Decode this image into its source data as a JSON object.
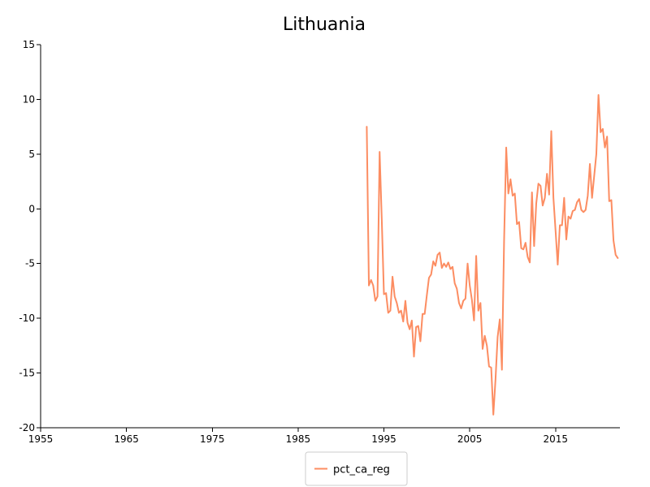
{
  "chart_data": {
    "type": "line",
    "title": "Lithuania",
    "xlabel": "",
    "ylabel": "",
    "xlim": [
      1955,
      2022.5
    ],
    "ylim": [
      -20,
      15
    ],
    "x_ticks": [
      "1955",
      "1965",
      "1975",
      "1985",
      "1995",
      "2005",
      "2015"
    ],
    "y_ticks": [
      "15",
      "10",
      "5",
      "0",
      "-5",
      "-10",
      "-15",
      "-20"
    ],
    "grid": false,
    "legend_position": "bottom-center",
    "series": [
      {
        "name": "pct_ca_reg",
        "color": "#fc8d62",
        "x": [
          1993.0,
          1993.25,
          1993.5,
          1993.75,
          1994.0,
          1994.25,
          1994.5,
          1994.75,
          1995.0,
          1995.25,
          1995.5,
          1995.75,
          1996.0,
          1996.25,
          1996.5,
          1996.75,
          1997.0,
          1997.25,
          1997.5,
          1997.75,
          1998.0,
          1998.25,
          1998.5,
          1998.75,
          1999.0,
          1999.25,
          1999.5,
          1999.75,
          2000.0,
          2000.25,
          2000.5,
          2000.75,
          2001.0,
          2001.25,
          2001.5,
          2001.75,
          2002.0,
          2002.25,
          2002.5,
          2002.75,
          2003.0,
          2003.25,
          2003.5,
          2003.75,
          2004.0,
          2004.25,
          2004.5,
          2004.75,
          2005.0,
          2005.25,
          2005.5,
          2005.75,
          2006.0,
          2006.25,
          2006.5,
          2006.75,
          2007.0,
          2007.25,
          2007.5,
          2007.75,
          2008.0,
          2008.25,
          2008.5,
          2008.75,
          2009.0,
          2009.25,
          2009.5,
          2009.75,
          2010.0,
          2010.25,
          2010.5,
          2010.75,
          2011.0,
          2011.25,
          2011.5,
          2011.75,
          2012.0,
          2012.25,
          2012.5,
          2012.75,
          2013.0,
          2013.25,
          2013.5,
          2013.75,
          2014.0,
          2014.25,
          2014.5,
          2014.75,
          2015.0,
          2015.25,
          2015.5,
          2015.75,
          2016.0,
          2016.25,
          2016.5,
          2016.75,
          2017.0,
          2017.25,
          2017.5,
          2017.75,
          2018.0,
          2018.25,
          2018.5,
          2018.75,
          2019.0,
          2019.25,
          2019.5,
          2019.75,
          2020.0,
          2020.25,
          2020.5,
          2020.75,
          2021.0,
          2021.25,
          2021.5,
          2021.75,
          2022.0,
          2022.25
        ],
        "y": [
          7.5,
          -7.0,
          -6.5,
          -7.0,
          -8.4,
          -8.0,
          5.2,
          -1.0,
          -7.8,
          -7.7,
          -9.5,
          -9.3,
          -6.2,
          -8.0,
          -8.6,
          -9.5,
          -9.3,
          -10.3,
          -8.4,
          -10.4,
          -11.0,
          -10.2,
          -13.5,
          -10.8,
          -10.7,
          -12.1,
          -9.6,
          -9.6,
          -7.9,
          -6.3,
          -6.0,
          -4.8,
          -5.2,
          -4.2,
          -4.0,
          -5.4,
          -5.0,
          -5.3,
          -4.9,
          -5.5,
          -5.3,
          -6.8,
          -7.3,
          -8.6,
          -9.1,
          -8.4,
          -8.2,
          -5.0,
          -7.0,
          -8.3,
          -10.2,
          -4.3,
          -9.3,
          -8.6,
          -12.8,
          -11.6,
          -12.5,
          -14.4,
          -14.5,
          -18.8,
          -15.6,
          -11.7,
          -10.1,
          -14.7,
          -3.0,
          5.6,
          1.4,
          2.7,
          1.2,
          1.4,
          -1.4,
          -1.2,
          -3.6,
          -3.7,
          -3.1,
          -4.4,
          -4.9,
          1.5,
          -3.4,
          0.5,
          2.3,
          2.1,
          0.3,
          1.0,
          3.2,
          1.3,
          7.1,
          1.0,
          -2.0,
          -5.1,
          -1.5,
          -1.5,
          1.0,
          -2.8,
          -0.7,
          -0.9,
          -0.2,
          -0.1,
          0.6,
          0.9,
          -0.1,
          -0.3,
          -0.1,
          1.2,
          4.1,
          1.0,
          3.0,
          5.0,
          10.4,
          7.0,
          7.3,
          5.6,
          6.6,
          0.7,
          0.8,
          -2.9,
          -4.2,
          -4.5
        ]
      }
    ]
  }
}
